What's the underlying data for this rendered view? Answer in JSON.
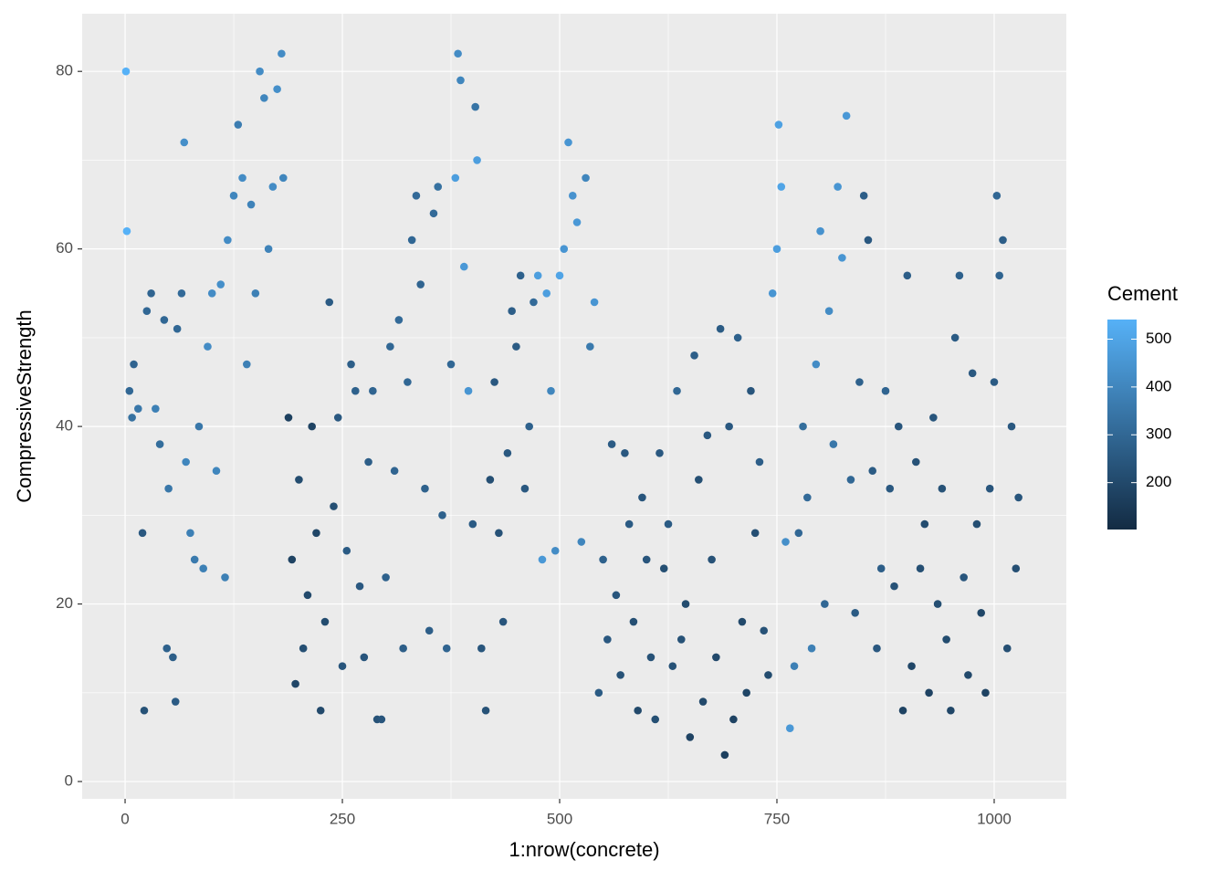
{
  "chart_data": {
    "type": "scatter",
    "xlabel": "1:nrow(concrete)",
    "ylabel": "CompressiveStrength",
    "legend_title": "Cement",
    "xlim": [
      -49.4,
      1083
    ],
    "ylim": [
      -1.95,
      86.5
    ],
    "xticks": [
      0,
      250,
      500,
      750,
      1000
    ],
    "yticks": [
      0,
      20,
      40,
      60,
      80
    ],
    "xminor": [
      125,
      375,
      625,
      875
    ],
    "yminor": [
      10,
      30,
      50,
      70
    ],
    "clim": [
      102,
      541
    ],
    "cticks": [
      200,
      300,
      400,
      500
    ],
    "color_low": "#132B43",
    "color_high": "#56B1F7",
    "background": "#EBEBEB",
    "grid": true,
    "legend_position": "right",
    "x": [
      1,
      2,
      5,
      8,
      10,
      15,
      20,
      22,
      25,
      30,
      35,
      40,
      45,
      48,
      50,
      55,
      58,
      60,
      65,
      68,
      70,
      75,
      80,
      85,
      90,
      95,
      100,
      105,
      110,
      115,
      118,
      125,
      130,
      135,
      140,
      145,
      150,
      155,
      160,
      165,
      170,
      175,
      180,
      182,
      188,
      192,
      196,
      200,
      205,
      210,
      215,
      220,
      225,
      230,
      235,
      240,
      245,
      250,
      255,
      260,
      265,
      270,
      275,
      280,
      285,
      290,
      295,
      300,
      305,
      310,
      315,
      320,
      325,
      330,
      335,
      340,
      345,
      350,
      355,
      360,
      365,
      370,
      375,
      380,
      383,
      386,
      390,
      395,
      400,
      403,
      405,
      410,
      415,
      420,
      425,
      430,
      435,
      440,
      445,
      450,
      455,
      460,
      465,
      470,
      475,
      480,
      485,
      490,
      495,
      500,
      505,
      510,
      515,
      520,
      525,
      530,
      535,
      540,
      545,
      550,
      555,
      560,
      565,
      570,
      575,
      580,
      585,
      590,
      595,
      600,
      605,
      610,
      615,
      620,
      625,
      630,
      635,
      640,
      645,
      650,
      655,
      660,
      665,
      670,
      675,
      680,
      685,
      690,
      695,
      700,
      705,
      710,
      715,
      720,
      725,
      730,
      735,
      740,
      745,
      750,
      752,
      755,
      760,
      765,
      770,
      775,
      780,
      785,
      790,
      795,
      800,
      805,
      810,
      815,
      820,
      825,
      830,
      835,
      840,
      845,
      850,
      855,
      860,
      865,
      870,
      875,
      880,
      885,
      890,
      895,
      900,
      905,
      910,
      915,
      920,
      925,
      930,
      935,
      940,
      945,
      950,
      955,
      960,
      965,
      970,
      975,
      980,
      985,
      990,
      995,
      1000,
      1003,
      1006,
      1010,
      1015,
      1020,
      1025,
      1028
    ],
    "values": [
      80,
      62,
      44,
      41,
      47,
      42,
      28,
      8,
      53,
      55,
      42,
      38,
      52,
      15,
      33,
      14,
      9,
      51,
      55,
      72,
      36,
      28,
      25,
      40,
      24,
      49,
      55,
      35,
      56,
      23,
      61,
      66,
      74,
      68,
      47,
      65,
      55,
      80,
      77,
      60,
      67,
      78,
      82,
      68,
      41,
      25,
      11,
      34,
      15,
      21,
      40,
      28,
      8,
      18,
      54,
      31,
      41,
      13,
      26,
      47,
      44,
      22,
      14,
      36,
      44,
      7,
      7,
      23,
      49,
      35,
      52,
      15,
      45,
      61,
      66,
      56,
      33,
      17,
      64,
      67,
      30,
      15,
      47,
      68,
      82,
      79,
      58,
      44,
      29,
      76,
      70,
      15,
      8,
      34,
      45,
      28,
      18,
      37,
      53,
      49,
      57,
      33,
      40,
      54,
      57,
      25,
      55,
      44,
      26,
      57,
      60,
      72,
      66,
      63,
      27,
      68,
      49,
      54,
      10,
      25,
      16,
      38,
      21,
      12,
      37,
      29,
      18,
      8,
      32,
      25,
      14,
      7,
      37,
      24,
      29,
      13,
      44,
      16,
      20,
      5,
      48,
      34,
      9,
      39,
      25,
      14,
      51,
      3,
      40,
      7,
      50,
      18,
      10,
      44,
      28,
      36,
      17,
      12,
      55,
      60,
      74,
      67,
      27,
      6,
      13,
      28,
      40,
      32,
      15,
      47,
      62,
      20,
      53,
      38,
      67,
      59,
      75,
      34,
      19,
      45,
      66,
      61,
      35,
      15,
      24,
      44,
      33,
      22,
      40,
      8,
      57,
      13,
      36,
      24,
      29,
      10,
      41,
      20,
      33,
      16,
      8,
      50,
      57,
      23,
      12,
      46,
      29,
      19,
      10,
      33,
      45,
      66,
      57,
      61,
      15,
      40,
      24,
      32
    ],
    "cement": [
      540,
      540,
      300,
      330,
      290,
      350,
      250,
      230,
      300,
      290,
      380,
      320,
      300,
      280,
      350,
      270,
      260,
      300,
      310,
      430,
      400,
      380,
      360,
      350,
      380,
      420,
      420,
      400,
      430,
      380,
      420,
      400,
      370,
      420,
      380,
      390,
      380,
      420,
      400,
      390,
      420,
      430,
      420,
      400,
      170,
      180,
      190,
      210,
      220,
      200,
      180,
      190,
      200,
      210,
      260,
      220,
      250,
      240,
      260,
      270,
      280,
      250,
      240,
      270,
      290,
      230,
      240,
      280,
      300,
      290,
      310,
      270,
      300,
      300,
      310,
      290,
      280,
      270,
      310,
      330,
      280,
      290,
      300,
      480,
      420,
      400,
      460,
      450,
      260,
      340,
      480,
      240,
      230,
      220,
      250,
      230,
      240,
      250,
      270,
      260,
      280,
      250,
      280,
      310,
      480,
      460,
      480,
      400,
      420,
      500,
      450,
      450,
      440,
      460,
      400,
      400,
      360,
      450,
      260,
      280,
      250,
      260,
      240,
      230,
      250,
      260,
      220,
      200,
      240,
      240,
      230,
      220,
      250,
      220,
      260,
      230,
      300,
      230,
      210,
      180,
      270,
      220,
      200,
      250,
      230,
      200,
      260,
      170,
      250,
      180,
      280,
      200,
      190,
      240,
      220,
      270,
      230,
      210,
      450,
      480,
      490,
      500,
      430,
      460,
      380,
      300,
      320,
      310,
      380,
      420,
      440,
      300,
      420,
      350,
      450,
      450,
      460,
      300,
      260,
      280,
      270,
      250,
      260,
      250,
      270,
      290,
      250,
      230,
      240,
      180,
      270,
      190,
      230,
      220,
      210,
      180,
      240,
      220,
      230,
      210,
      190,
      260,
      280,
      240,
      200,
      250,
      220,
      190,
      180,
      240,
      260,
      300,
      290,
      270,
      220,
      250,
      220,
      240
    ]
  }
}
